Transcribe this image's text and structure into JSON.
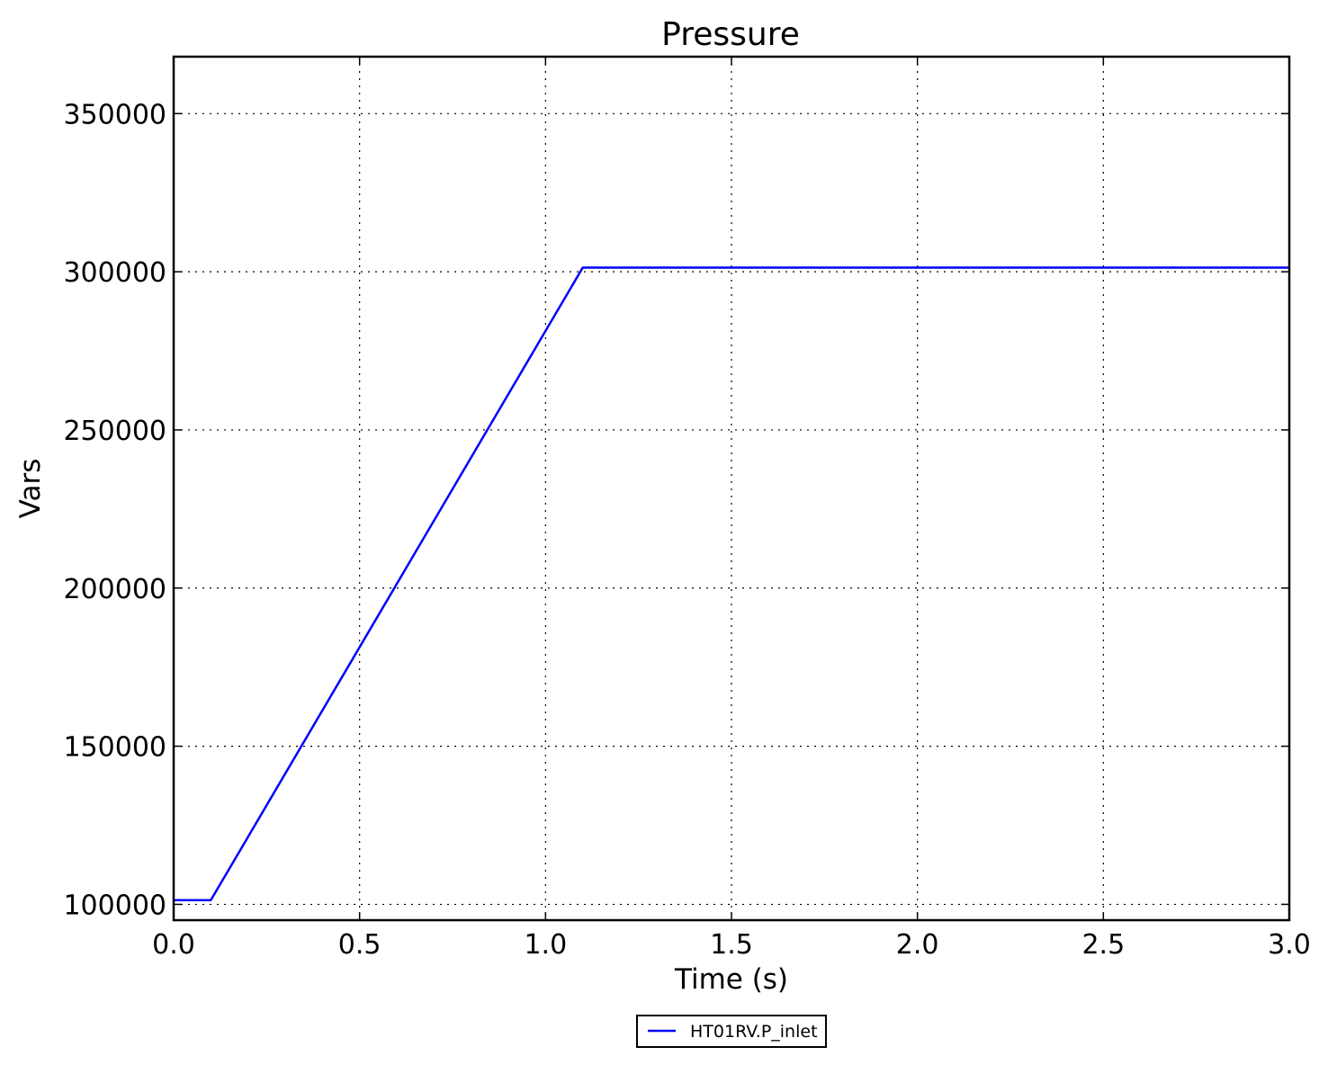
{
  "chart_data": {
    "type": "line",
    "title": "Pressure",
    "xlabel": "Time (s)",
    "ylabel": "Vars",
    "xlim": [
      0.0,
      3.0
    ],
    "ylim": [
      95000,
      368000
    ],
    "x_ticks": [
      0.0,
      0.5,
      1.0,
      1.5,
      2.0,
      2.5,
      3.0
    ],
    "x_tick_labels": [
      "0.0",
      "0.5",
      "1.0",
      "1.5",
      "2.0",
      "2.5",
      "3.0"
    ],
    "y_ticks": [
      100000,
      150000,
      200000,
      250000,
      300000,
      350000
    ],
    "y_tick_labels": [
      "100000",
      "150000",
      "200000",
      "250000",
      "300000",
      "350000"
    ],
    "grid": true,
    "legend_position": "bottom-center, outside plot",
    "series": [
      {
        "name": "HT01RV.P_inlet",
        "color": "#0000ff",
        "x": [
          0.0,
          0.1,
          1.1,
          3.0
        ],
        "y": [
          101325,
          101325,
          301325,
          301325
        ]
      }
    ]
  }
}
